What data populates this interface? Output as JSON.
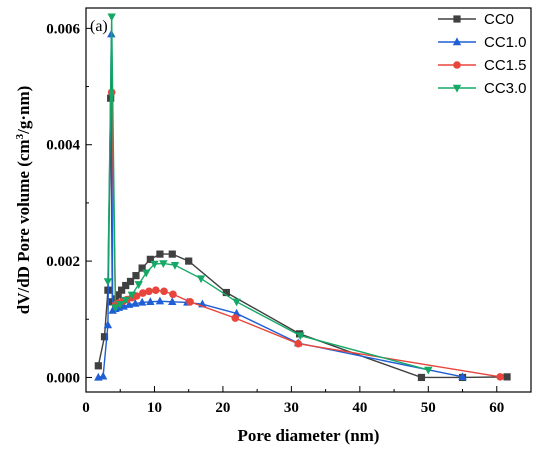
{
  "panel_label": "(a)",
  "chart_data": {
    "type": "line",
    "xlabel": "Pore diameter (nm)",
    "ylabel": "dV/dD Pore volume (cm3/g·nm)",
    "ylabel_parts": {
      "before": "dV/dD Pore volume (cm",
      "sup": "3",
      "after": "/g·nm)"
    },
    "xlim": [
      0,
      65
    ],
    "ylim": [
      -0.00025,
      0.00635
    ],
    "x_ticks": [
      0,
      10,
      20,
      30,
      40,
      50,
      60
    ],
    "x_tick_labels": [
      "0",
      "10",
      "20",
      "30",
      "40",
      "50",
      "60"
    ],
    "y_ticks": [
      0,
      0.002,
      0.004,
      0.006
    ],
    "y_tick_labels": [
      "0.000",
      "0.002",
      "0.004",
      "0.006"
    ],
    "legend_position": "top-right",
    "series": [
      {
        "name": "CC0",
        "color": "#404040",
        "marker": "square",
        "x": [
          1.8,
          2.7,
          3.2,
          3.6,
          3.85,
          4.3,
          4.7,
          5.2,
          5.8,
          6.5,
          7.3,
          8.2,
          9.4,
          10.8,
          12.6,
          15.0,
          20.5,
          31.2,
          49.0,
          55.0,
          61.5
        ],
        "y": [
          0.0002,
          0.0007,
          0.0015,
          0.0048,
          0.0013,
          0.00135,
          0.00142,
          0.0015,
          0.00158,
          0.00165,
          0.00175,
          0.00188,
          0.00203,
          0.00212,
          0.00212,
          0.002,
          0.00146,
          0.00075,
          0.0,
          0.0,
          1e-05
        ]
      },
      {
        "name": "CC1.0",
        "color": "#1f5fd6",
        "marker": "triangle-up",
        "x": [
          1.8,
          2.5,
          3.2,
          3.7,
          3.9,
          4.3,
          4.8,
          5.5,
          6.3,
          7.2,
          8.2,
          9.4,
          10.8,
          12.6,
          14.8,
          17.0,
          22.0,
          31.0,
          55.0
        ],
        "y": [
          0.0,
          2e-05,
          0.0009,
          0.0059,
          0.00115,
          0.00118,
          0.0012,
          0.00122,
          0.00125,
          0.00127,
          0.00129,
          0.0013,
          0.00131,
          0.0013,
          0.00129,
          0.00126,
          0.0011,
          0.00059,
          1e-05
        ]
      },
      {
        "name": "CC1.5",
        "color": "#e8453c",
        "marker": "circle",
        "x": [
          3.75,
          4.3,
          4.8,
          5.4,
          6.0,
          6.7,
          7.4,
          8.3,
          9.2,
          10.2,
          11.4,
          12.7,
          15.2,
          21.8,
          31.0,
          60.5
        ],
        "y": [
          0.0049,
          0.00125,
          0.00128,
          0.00131,
          0.00134,
          0.00137,
          0.0014,
          0.00145,
          0.00148,
          0.0015,
          0.00148,
          0.00143,
          0.0013,
          0.00102,
          0.00058,
          1e-05
        ]
      },
      {
        "name": "CC3.0",
        "color": "#16a866",
        "marker": "triangle-down",
        "x": [
          3.2,
          3.75,
          4.3,
          5.0,
          5.8,
          6.7,
          7.7,
          8.8,
          10.0,
          11.3,
          13.0,
          16.8,
          22.0,
          31.3,
          50.0
        ],
        "y": [
          0.00165,
          0.0062,
          0.0012,
          0.00126,
          0.00133,
          0.00142,
          0.0016,
          0.0018,
          0.00195,
          0.00196,
          0.00193,
          0.0017,
          0.0013,
          0.00072,
          0.00013
        ]
      }
    ]
  }
}
